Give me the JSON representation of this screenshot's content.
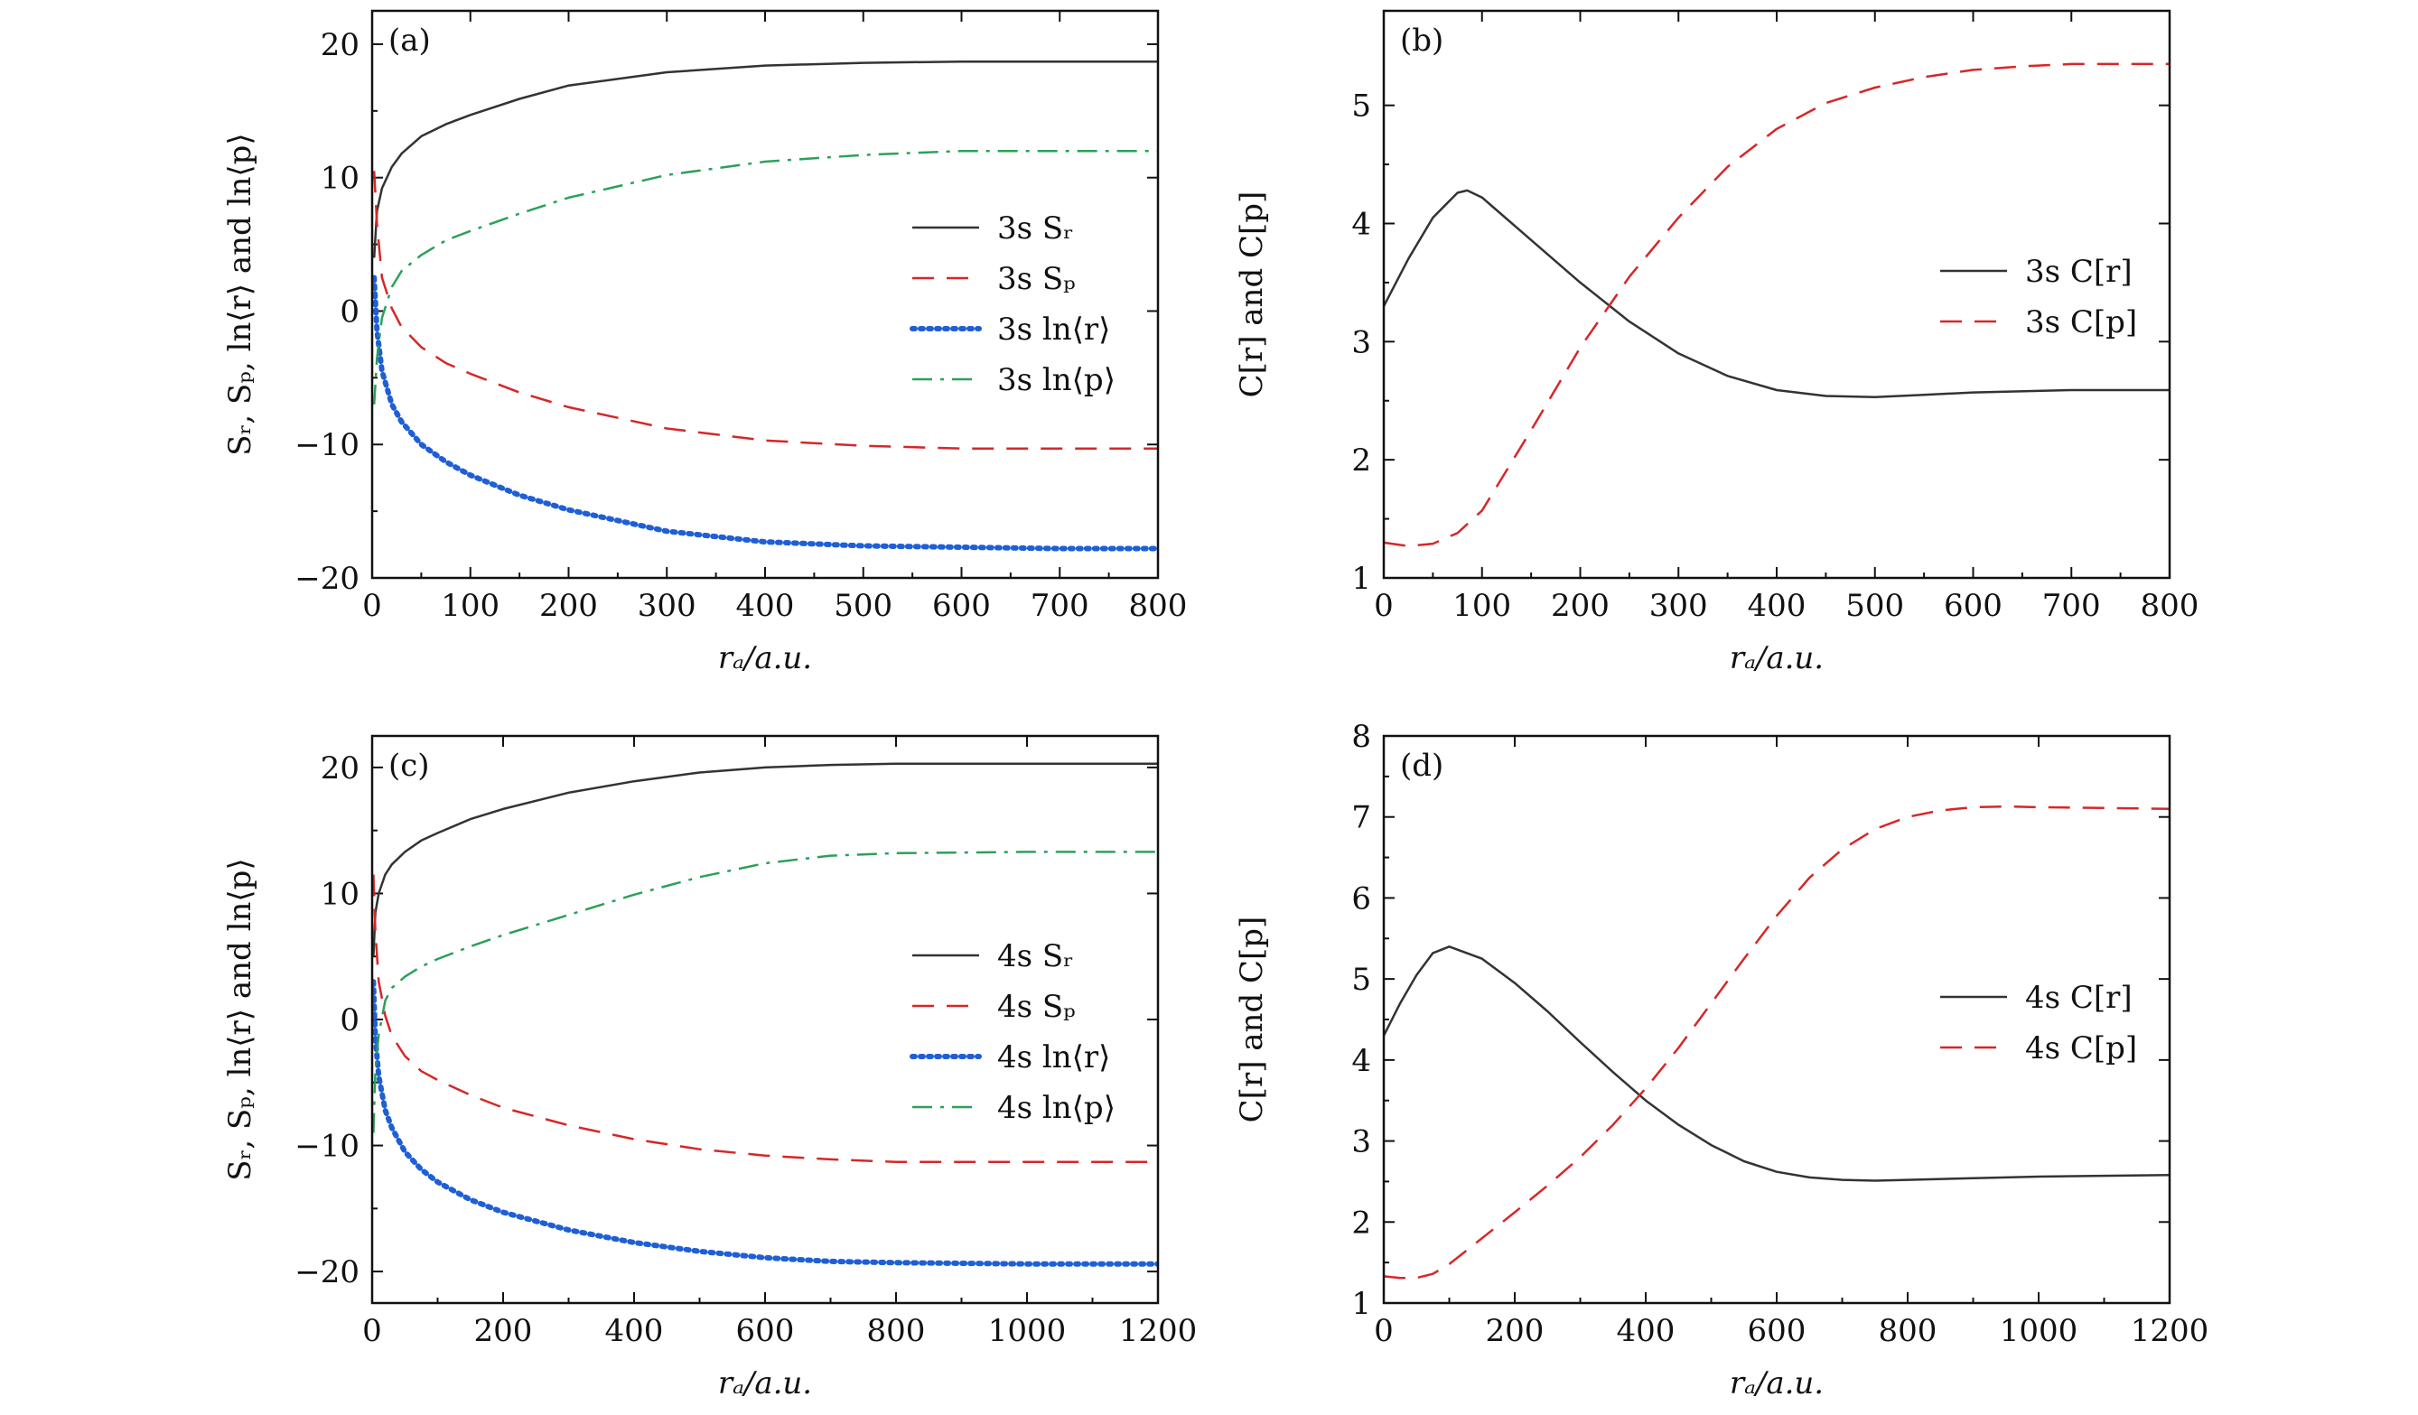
{
  "chart_data": [
    {
      "type": "line",
      "panel_label": "(a)",
      "xlabel": "rₐ/a.u.",
      "ylabel": "Sᵣ, Sₚ, ln⟨r⟩ and ln⟨p⟩",
      "xlim": [
        0,
        800
      ],
      "ylim": [
        -20,
        22.5
      ],
      "xticks": [
        0,
        100,
        200,
        300,
        400,
        500,
        600,
        700,
        800
      ],
      "xtick_labels": [
        "0",
        "100",
        "200",
        "300",
        "400",
        "500",
        "600",
        "700",
        "800"
      ],
      "yticks": [
        -20,
        -10,
        0,
        10,
        20
      ],
      "ytick_labels": [
        "−20",
        "−10",
        "0",
        "10",
        "20"
      ],
      "legend_position": "right",
      "series": [
        {
          "name": "3s Sᵣ",
          "style": "solid",
          "color": "#333333",
          "x": [
            2,
            5,
            10,
            20,
            30,
            50,
            75,
            100,
            150,
            200,
            300,
            400,
            500,
            600,
            700,
            800
          ],
          "y": [
            4,
            7.5,
            9.2,
            10.8,
            11.8,
            13.1,
            14.0,
            14.7,
            15.9,
            16.9,
            17.9,
            18.4,
            18.6,
            18.7,
            18.7,
            18.7
          ]
        },
        {
          "name": "3s Sₚ",
          "style": "dashed",
          "color": "#d62728",
          "x": [
            2,
            5,
            10,
            20,
            30,
            50,
            75,
            100,
            150,
            200,
            300,
            400,
            500,
            600,
            700,
            800
          ],
          "y": [
            10.5,
            6.5,
            2.5,
            0.2,
            -1.2,
            -2.7,
            -3.9,
            -4.7,
            -6.1,
            -7.2,
            -8.8,
            -9.7,
            -10.1,
            -10.3,
            -10.3,
            -10.3
          ]
        },
        {
          "name": "3s ln⟨r⟩",
          "style": "dotted",
          "color": "#1f5fd6",
          "x": [
            2,
            5,
            10,
            20,
            30,
            50,
            75,
            100,
            150,
            200,
            300,
            400,
            500,
            600,
            700,
            800
          ],
          "y": [
            2.5,
            -1.5,
            -4.5,
            -7.0,
            -8.3,
            -10.0,
            -11.3,
            -12.3,
            -13.8,
            -14.9,
            -16.5,
            -17.3,
            -17.6,
            -17.7,
            -17.8,
            -17.8
          ]
        },
        {
          "name": "3s ln⟨p⟩",
          "style": "dashdot",
          "color": "#2ca05a",
          "x": [
            2,
            5,
            10,
            20,
            30,
            50,
            75,
            100,
            150,
            200,
            300,
            400,
            500,
            600,
            700,
            800
          ],
          "y": [
            -7.0,
            -3.5,
            -0.5,
            1.8,
            3.0,
            4.2,
            5.3,
            6.0,
            7.3,
            8.5,
            10.2,
            11.2,
            11.7,
            12.0,
            12.0,
            12.0
          ]
        }
      ]
    },
    {
      "type": "line",
      "panel_label": "(b)",
      "xlabel": "rₐ/a.u.",
      "ylabel": "C[r] and C[p]",
      "xlim": [
        0,
        800
      ],
      "ylim": [
        1,
        5.8
      ],
      "xticks": [
        0,
        100,
        200,
        300,
        400,
        500,
        600,
        700,
        800
      ],
      "xtick_labels": [
        "0",
        "100",
        "200",
        "300",
        "400",
        "500",
        "600",
        "700",
        "800"
      ],
      "yticks": [
        1,
        2,
        3,
        4,
        5
      ],
      "ytick_labels": [
        "1",
        "2",
        "3",
        "4",
        "5"
      ],
      "legend_position": "right",
      "series": [
        {
          "name": "3s C[r]",
          "style": "solid",
          "color": "#333333",
          "x": [
            0,
            25,
            50,
            75,
            85,
            100,
            150,
            200,
            250,
            300,
            350,
            400,
            450,
            500,
            550,
            600,
            700,
            800
          ],
          "y": [
            3.3,
            3.7,
            4.05,
            4.26,
            4.28,
            4.22,
            3.86,
            3.5,
            3.17,
            2.9,
            2.71,
            2.59,
            2.54,
            2.53,
            2.55,
            2.57,
            2.59,
            2.59
          ]
        },
        {
          "name": "3s C[p]",
          "style": "dashed",
          "color": "#d62728",
          "x": [
            0,
            25,
            50,
            75,
            100,
            150,
            200,
            250,
            300,
            350,
            400,
            450,
            500,
            550,
            600,
            650,
            700,
            750,
            800
          ],
          "y": [
            1.3,
            1.27,
            1.29,
            1.38,
            1.57,
            2.25,
            2.95,
            3.55,
            4.05,
            4.48,
            4.8,
            5.02,
            5.15,
            5.24,
            5.3,
            5.33,
            5.35,
            5.35,
            5.35
          ]
        }
      ]
    },
    {
      "type": "line",
      "panel_label": "(c)",
      "xlabel": "rₐ/a.u.",
      "ylabel": "Sᵣ, Sₚ, ln⟨r⟩ and ln⟨p⟩",
      "xlim": [
        0,
        1200
      ],
      "ylim": [
        -22.5,
        22.5
      ],
      "xticks": [
        0,
        200,
        400,
        600,
        800,
        1000,
        1200
      ],
      "xtick_labels": [
        "0",
        "200",
        "400",
        "600",
        "800",
        "1000",
        "1200"
      ],
      "yticks": [
        -20,
        -10,
        0,
        10,
        20
      ],
      "ytick_labels": [
        "−20",
        "−10",
        "0",
        "10",
        "20"
      ],
      "legend_position": "right",
      "series": [
        {
          "name": "4s Sᵣ",
          "style": "solid",
          "color": "#333333",
          "x": [
            2,
            5,
            10,
            20,
            30,
            50,
            75,
            100,
            150,
            200,
            300,
            400,
            500,
            600,
            700,
            800,
            1000,
            1200
          ],
          "y": [
            5,
            8.5,
            10,
            11.5,
            12.3,
            13.3,
            14.2,
            14.8,
            15.9,
            16.7,
            18.0,
            18.9,
            19.6,
            20.0,
            20.2,
            20.3,
            20.3,
            20.3
          ]
        },
        {
          "name": "4s Sₚ",
          "style": "dashed",
          "color": "#d62728",
          "x": [
            2,
            5,
            10,
            20,
            30,
            50,
            75,
            100,
            150,
            200,
            300,
            400,
            500,
            600,
            700,
            800,
            1000,
            1200
          ],
          "y": [
            11.5,
            7,
            3,
            0.3,
            -1.3,
            -2.9,
            -4.1,
            -4.8,
            -6.0,
            -7.0,
            -8.4,
            -9.5,
            -10.3,
            -10.8,
            -11.1,
            -11.3,
            -11.3,
            -11.3
          ]
        },
        {
          "name": "4s ln⟨r⟩",
          "style": "dotted",
          "color": "#1f5fd6",
          "x": [
            2,
            5,
            10,
            20,
            30,
            50,
            75,
            100,
            150,
            200,
            300,
            400,
            500,
            600,
            700,
            800,
            1000,
            1200
          ],
          "y": [
            3,
            -1.5,
            -4.5,
            -7.2,
            -8.6,
            -10.5,
            -11.9,
            -12.9,
            -14.3,
            -15.3,
            -16.7,
            -17.7,
            -18.4,
            -18.9,
            -19.2,
            -19.3,
            -19.4,
            -19.4
          ]
        },
        {
          "name": "4s ln⟨p⟩",
          "style": "dashdot",
          "color": "#2ca05a",
          "x": [
            2,
            5,
            10,
            20,
            30,
            50,
            75,
            100,
            150,
            200,
            300,
            400,
            500,
            600,
            700,
            800,
            1000,
            1200
          ],
          "y": [
            -9,
            -4,
            -1.2,
            1.5,
            2.5,
            3.4,
            4.2,
            4.8,
            5.8,
            6.7,
            8.3,
            9.9,
            11.3,
            12.4,
            13.0,
            13.2,
            13.3,
            13.3
          ]
        }
      ]
    },
    {
      "type": "line",
      "panel_label": "(d)",
      "xlabel": "rₐ/a.u.",
      "ylabel": "C[r] and C[p]",
      "xlim": [
        0,
        1200
      ],
      "ylim": [
        1,
        8
      ],
      "xticks": [
        0,
        200,
        400,
        600,
        800,
        1000,
        1200
      ],
      "xtick_labels": [
        "0",
        "200",
        "400",
        "600",
        "800",
        "1000",
        "1200"
      ],
      "yticks": [
        1,
        2,
        3,
        4,
        5,
        6,
        7,
        8
      ],
      "ytick_labels": [
        "1",
        "2",
        "3",
        "4",
        "5",
        "6",
        "7",
        "8"
      ],
      "legend_position": "right",
      "series": [
        {
          "name": "4s C[r]",
          "style": "solid",
          "color": "#333333",
          "x": [
            0,
            25,
            50,
            75,
            100,
            150,
            200,
            250,
            300,
            350,
            400,
            450,
            500,
            550,
            600,
            650,
            700,
            750,
            800,
            1000,
            1200
          ],
          "y": [
            4.3,
            4.7,
            5.05,
            5.32,
            5.4,
            5.25,
            4.95,
            4.6,
            4.22,
            3.85,
            3.5,
            3.2,
            2.95,
            2.75,
            2.62,
            2.55,
            2.52,
            2.51,
            2.52,
            2.56,
            2.58
          ]
        },
        {
          "name": "4s C[p]",
          "style": "dashed",
          "color": "#d62728",
          "x": [
            0,
            25,
            50,
            75,
            100,
            150,
            200,
            250,
            300,
            350,
            400,
            450,
            500,
            550,
            600,
            650,
            700,
            750,
            800,
            850,
            900,
            950,
            1000,
            1100,
            1200
          ],
          "y": [
            1.33,
            1.31,
            1.31,
            1.36,
            1.48,
            1.8,
            2.12,
            2.45,
            2.8,
            3.2,
            3.65,
            4.15,
            4.7,
            5.25,
            5.78,
            6.25,
            6.6,
            6.85,
            7.0,
            7.08,
            7.12,
            7.13,
            7.12,
            7.11,
            7.1
          ]
        }
      ]
    }
  ]
}
